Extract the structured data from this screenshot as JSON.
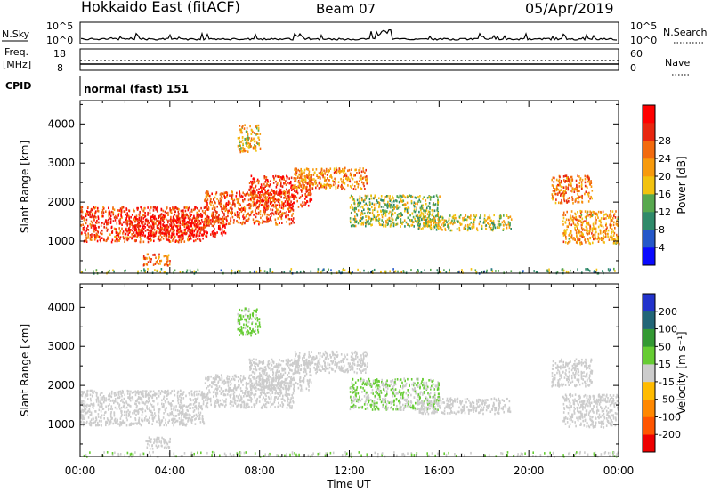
{
  "header": {
    "radar": "Hokkaido East (fitACF)",
    "beam": "Beam 07",
    "date": "05/Apr/2019"
  },
  "status_panels": {
    "nsky_label": "N.Sky",
    "nsky_top": "10^5",
    "nsky_bottom": "10^0",
    "nsearch_label": "N.Search",
    "nsearch_top": "10^5",
    "nsearch_bottom": "10^0",
    "freq_label_1": "Freq.",
    "freq_label_2": "[MHz]",
    "freq_top": "18",
    "freq_bottom": "8",
    "nave_label": "Nave",
    "nave_top": "60",
    "nave_bottom": "0",
    "cpid_label": "CPID",
    "cpid_value": "normal (fast) 151"
  },
  "colors": {
    "power_scale": [
      "#0a0aff",
      "#2457c9",
      "#2f8a6a",
      "#57a84e",
      "#f2c20f",
      "#f79a0d",
      "#f26a0e",
      "#e8260f",
      "#ff0000"
    ],
    "velocity_scale": [
      "#ee0000",
      "#ff5500",
      "#ff8800",
      "#ffbb00",
      "#cccccc",
      "#66cc33",
      "#339933",
      "#226677",
      "#2233cc"
    ]
  },
  "chart_data": [
    {
      "type": "heatmap",
      "title": "Power",
      "ylabel": "Slant Range [km]",
      "xlabel": "",
      "x_range_hours": [
        0,
        24
      ],
      "ylim": [
        180,
        4600
      ],
      "yticks": [
        1000,
        2000,
        3000,
        4000
      ],
      "colorbar": {
        "label": "Power [dB]",
        "range": [
          0,
          32
        ],
        "ticks": [
          "4",
          "8",
          "12",
          "16",
          "20",
          "24",
          "28"
        ]
      },
      "regions": [
        {
          "x": [
            0.0,
            5.5
          ],
          "y": [
            1000,
            1900
          ],
          "value": 26
        },
        {
          "x": [
            2.0,
            6.5
          ],
          "y": [
            1150,
            1700
          ],
          "value": 29
        },
        {
          "x": [
            5.5,
            9.5
          ],
          "y": [
            1450,
            2300
          ],
          "value": 24
        },
        {
          "x": [
            7.5,
            10.3
          ],
          "y": [
            1900,
            2700
          ],
          "value": 27
        },
        {
          "x": [
            9.5,
            12.8
          ],
          "y": [
            2350,
            2900
          ],
          "value": 21
        },
        {
          "x": [
            12.0,
            16.0
          ],
          "y": [
            1400,
            2200
          ],
          "value": 14
        },
        {
          "x": [
            15.0,
            19.2
          ],
          "y": [
            1300,
            1700
          ],
          "value": 15
        },
        {
          "x": [
            2.8,
            4.0
          ],
          "y": [
            400,
            700
          ],
          "value": 22
        },
        {
          "x": [
            7.0,
            8.0
          ],
          "y": [
            3300,
            4000
          ],
          "value": 18
        },
        {
          "x": [
            21.0,
            22.8
          ],
          "y": [
            2000,
            2700
          ],
          "value": 22
        },
        {
          "x": [
            21.5,
            24.0
          ],
          "y": [
            950,
            1800
          ],
          "value": 20
        },
        {
          "x": [
            0.0,
            24.0
          ],
          "y": [
            200,
            320
          ],
          "value": 12
        }
      ]
    },
    {
      "type": "heatmap",
      "title": "Velocity",
      "ylabel": "Slant Range [km]",
      "xlabel": "Time UT",
      "x_range_hours": [
        0,
        24
      ],
      "xticks": [
        "00:00",
        "04:00",
        "08:00",
        "12:00",
        "16:00",
        "20:00",
        "00:00"
      ],
      "ylim": [
        180,
        4600
      ],
      "yticks": [
        1000,
        2000,
        3000,
        4000
      ],
      "colorbar": {
        "label": "Velocity [m s⁻¹]",
        "range": [
          -300,
          300
        ],
        "ticks": [
          "-200",
          "-100",
          "-50",
          "-15",
          "15",
          "50",
          "100",
          "200"
        ]
      },
      "regions": [
        {
          "x": [
            0.0,
            5.5
          ],
          "y": [
            1000,
            1900
          ],
          "value": 0
        },
        {
          "x": [
            5.5,
            9.5
          ],
          "y": [
            1450,
            2300
          ],
          "value": 0
        },
        {
          "x": [
            7.5,
            10.3
          ],
          "y": [
            1900,
            2700
          ],
          "value": 0
        },
        {
          "x": [
            9.5,
            12.8
          ],
          "y": [
            2350,
            2900
          ],
          "value": 0
        },
        {
          "x": [
            12.0,
            16.0
          ],
          "y": [
            1400,
            2200
          ],
          "value": 35
        },
        {
          "x": [
            15.0,
            19.2
          ],
          "y": [
            1300,
            1700
          ],
          "value": 5
        },
        {
          "x": [
            2.8,
            4.0
          ],
          "y": [
            400,
            700
          ],
          "value": 0
        },
        {
          "x": [
            7.0,
            8.0
          ],
          "y": [
            3300,
            4000
          ],
          "value": 45
        },
        {
          "x": [
            21.0,
            22.8
          ],
          "y": [
            2000,
            2700
          ],
          "value": 0
        },
        {
          "x": [
            21.5,
            24.0
          ],
          "y": [
            950,
            1800
          ],
          "value": 0
        },
        {
          "x": [
            0.0,
            24.0
          ],
          "y": [
            200,
            320
          ],
          "value": 30
        }
      ]
    }
  ]
}
